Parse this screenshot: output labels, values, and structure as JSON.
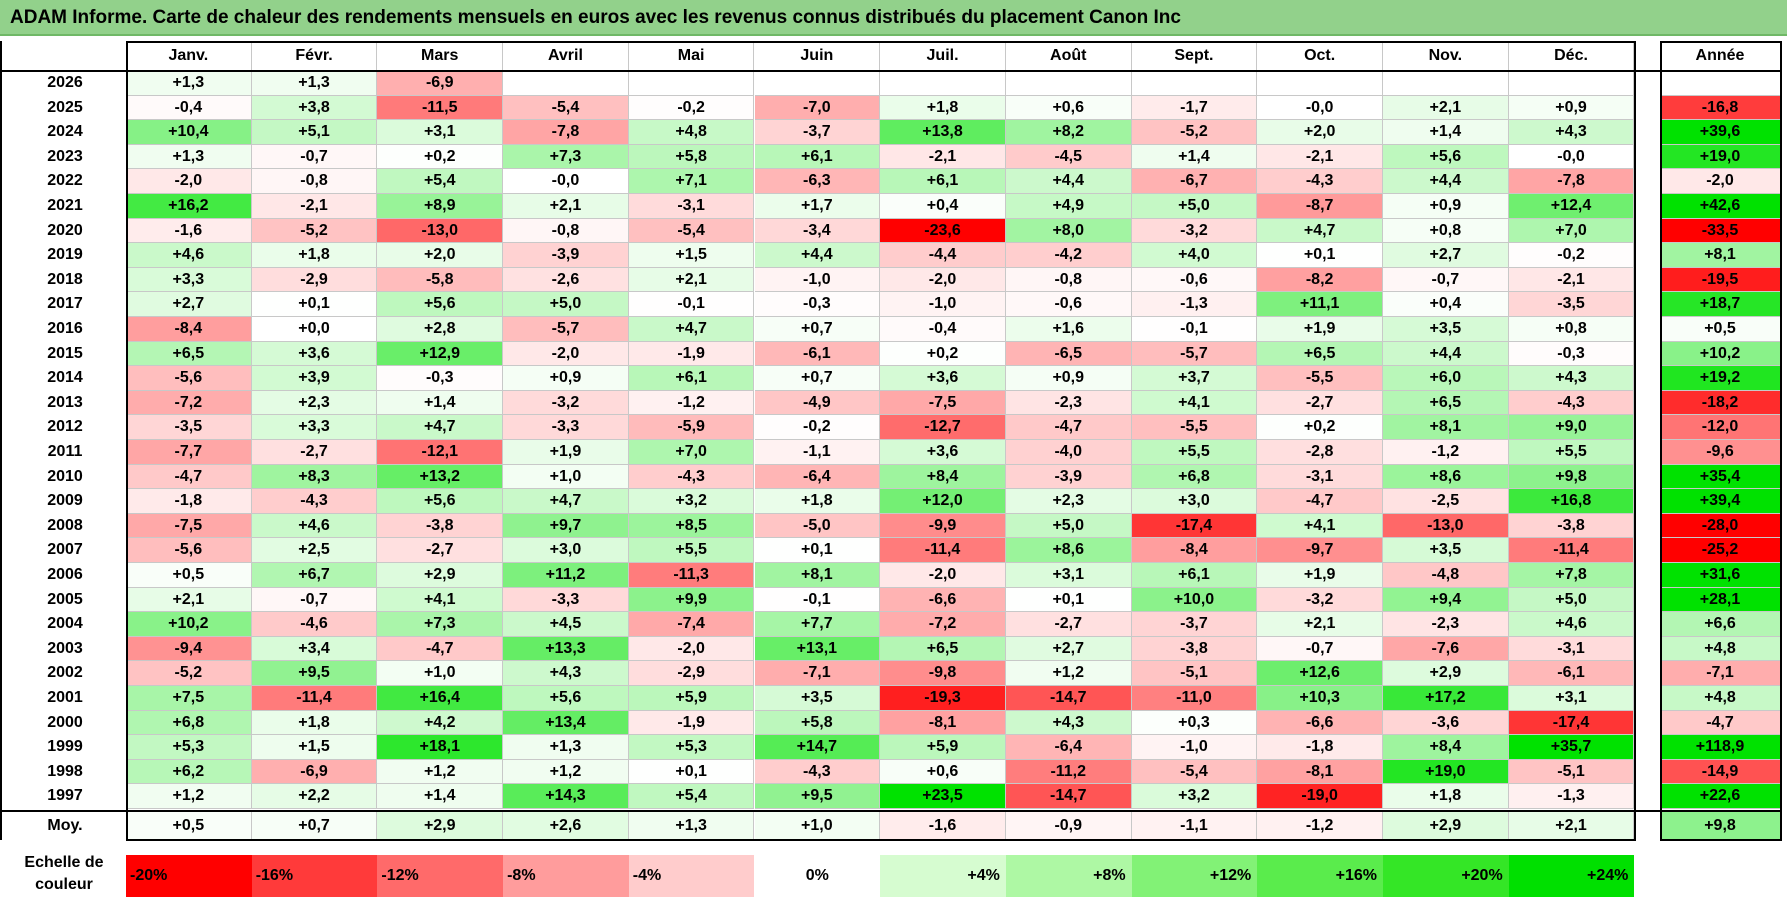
{
  "title": "ADAM Informe. Carte de chaleur des rendements mensuels en euros avec les revenus connus distribués du placement Canon Inc",
  "chart_data": {
    "type": "heatmap",
    "title": "ADAM Informe. Carte de chaleur des rendements mensuels en euros avec les revenus connus distribués du placement Canon Inc",
    "columns": [
      "Janv.",
      "Févr.",
      "Mars",
      "Avril",
      "Mai",
      "Juin",
      "Juil.",
      "Août",
      "Sept.",
      "Oct.",
      "Nov.",
      "Déc."
    ],
    "annual_header": "Année",
    "rows": [
      {
        "year": "2026",
        "months": [
          "+1,3",
          "+1,3",
          "-6,9",
          "",
          "",
          "",
          "",
          "",
          "",
          "",
          "",
          ""
        ],
        "annual": ""
      },
      {
        "year": "2025",
        "months": [
          "-0,4",
          "+3,8",
          "-11,5",
          "-5,4",
          "-0,2",
          "-7,0",
          "+1,8",
          "+0,6",
          "-1,7",
          "-0,0",
          "+2,1",
          "+0,9"
        ],
        "annual": "-16,8"
      },
      {
        "year": "2024",
        "months": [
          "+10,4",
          "+5,1",
          "+3,1",
          "-7,8",
          "+4,8",
          "-3,7",
          "+13,8",
          "+8,2",
          "-5,2",
          "+2,0",
          "+1,4",
          "+4,3"
        ],
        "annual": "+39,6"
      },
      {
        "year": "2023",
        "months": [
          "+1,3",
          "-0,7",
          "+0,2",
          "+7,3",
          "+5,8",
          "+6,1",
          "-2,1",
          "-4,5",
          "+1,4",
          "-2,1",
          "+5,6",
          "-0,0"
        ],
        "annual": "+19,0"
      },
      {
        "year": "2022",
        "months": [
          "-2,0",
          "-0,8",
          "+5,4",
          "-0,0",
          "+7,1",
          "-6,3",
          "+6,1",
          "+4,4",
          "-6,7",
          "-4,3",
          "+4,4",
          "-7,8"
        ],
        "annual": "-2,0"
      },
      {
        "year": "2021",
        "months": [
          "+16,2",
          "-2,1",
          "+8,9",
          "+2,1",
          "-3,1",
          "+1,7",
          "+0,4",
          "+4,9",
          "+5,0",
          "-8,7",
          "+0,9",
          "+12,4"
        ],
        "annual": "+42,6"
      },
      {
        "year": "2020",
        "months": [
          "-1,6",
          "-5,2",
          "-13,0",
          "-0,8",
          "-5,4",
          "-3,4",
          "-23,6",
          "+8,0",
          "-3,2",
          "+4,7",
          "+0,8",
          "+7,0"
        ],
        "annual": "-33,5"
      },
      {
        "year": "2019",
        "months": [
          "+4,6",
          "+1,8",
          "+2,0",
          "-3,9",
          "+1,5",
          "+4,4",
          "-4,4",
          "-4,2",
          "+4,0",
          "+0,1",
          "+2,7",
          "-0,2"
        ],
        "annual": "+8,1"
      },
      {
        "year": "2018",
        "months": [
          "+3,3",
          "-2,9",
          "-5,8",
          "-2,6",
          "+2,1",
          "-1,0",
          "-2,0",
          "-0,8",
          "-0,6",
          "-8,2",
          "-0,7",
          "-2,1"
        ],
        "annual": "-19,5"
      },
      {
        "year": "2017",
        "months": [
          "+2,7",
          "+0,1",
          "+5,6",
          "+5,0",
          "-0,1",
          "-0,3",
          "-1,0",
          "-0,6",
          "-1,3",
          "+11,1",
          "+0,4",
          "-3,5"
        ],
        "annual": "+18,7"
      },
      {
        "year": "2016",
        "months": [
          "-8,4",
          "+0,0",
          "+2,8",
          "-5,7",
          "+4,7",
          "+0,7",
          "-0,4",
          "+1,6",
          "-0,1",
          "+1,9",
          "+3,5",
          "+0,8"
        ],
        "annual": "+0,5"
      },
      {
        "year": "2015",
        "months": [
          "+6,5",
          "+3,6",
          "+12,9",
          "-2,0",
          "-1,9",
          "-6,1",
          "+0,2",
          "-6,5",
          "-5,7",
          "+6,5",
          "+4,4",
          "-0,3"
        ],
        "annual": "+10,2"
      },
      {
        "year": "2014",
        "months": [
          "-5,6",
          "+3,9",
          "-0,3",
          "+0,9",
          "+6,1",
          "+0,7",
          "+3,6",
          "+0,9",
          "+3,7",
          "-5,5",
          "+6,0",
          "+4,3"
        ],
        "annual": "+19,2"
      },
      {
        "year": "2013",
        "months": [
          "-7,2",
          "+2,3",
          "+1,4",
          "-3,2",
          "-1,2",
          "-4,9",
          "-7,5",
          "-2,3",
          "+4,1",
          "-2,7",
          "+6,5",
          "-4,3"
        ],
        "annual": "-18,2"
      },
      {
        "year": "2012",
        "months": [
          "-3,5",
          "+3,3",
          "+4,7",
          "-3,3",
          "-5,9",
          "-0,2",
          "-12,7",
          "-4,7",
          "-5,5",
          "+0,2",
          "+8,1",
          "+9,0"
        ],
        "annual": "-12,0"
      },
      {
        "year": "2011",
        "months": [
          "-7,7",
          "-2,7",
          "-12,1",
          "+1,9",
          "+7,0",
          "-1,1",
          "+3,6",
          "-4,0",
          "+5,5",
          "-2,8",
          "-1,2",
          "+5,5"
        ],
        "annual": "-9,6"
      },
      {
        "year": "2010",
        "months": [
          "-4,7",
          "+8,3",
          "+13,2",
          "+1,0",
          "-4,3",
          "-6,4",
          "+8,4",
          "-3,9",
          "+6,8",
          "-3,1",
          "+8,6",
          "+9,8"
        ],
        "annual": "+35,4"
      },
      {
        "year": "2009",
        "months": [
          "-1,8",
          "-4,3",
          "+5,6",
          "+4,7",
          "+3,2",
          "+1,8",
          "+12,0",
          "+2,3",
          "+3,0",
          "-4,7",
          "-2,5",
          "+16,8"
        ],
        "annual": "+39,4"
      },
      {
        "year": "2008",
        "months": [
          "-7,5",
          "+4,6",
          "-3,8",
          "+9,7",
          "+8,5",
          "-5,0",
          "-9,9",
          "+5,0",
          "-17,4",
          "+4,1",
          "-13,0",
          "-3,8"
        ],
        "annual": "-28,0"
      },
      {
        "year": "2007",
        "months": [
          "-5,6",
          "+2,5",
          "-2,7",
          "+3,0",
          "+5,5",
          "+0,1",
          "-11,4",
          "+8,6",
          "-8,4",
          "-9,7",
          "+3,5",
          "-11,4"
        ],
        "annual": "-25,2"
      },
      {
        "year": "2006",
        "months": [
          "+0,5",
          "+6,7",
          "+2,9",
          "+11,2",
          "-11,3",
          "+8,1",
          "-2,0",
          "+3,1",
          "+6,1",
          "+1,9",
          "-4,8",
          "+7,8"
        ],
        "annual": "+31,6"
      },
      {
        "year": "2005",
        "months": [
          "+2,1",
          "-0,7",
          "+4,1",
          "-3,3",
          "+9,9",
          "-0,1",
          "-6,6",
          "+0,1",
          "+10,0",
          "-3,2",
          "+9,4",
          "+5,0"
        ],
        "annual": "+28,1"
      },
      {
        "year": "2004",
        "months": [
          "+10,2",
          "-4,6",
          "+7,3",
          "+4,5",
          "-7,4",
          "+7,7",
          "-7,2",
          "-2,7",
          "-3,7",
          "+2,1",
          "-2,3",
          "+4,6"
        ],
        "annual": "+6,6"
      },
      {
        "year": "2003",
        "months": [
          "-9,4",
          "+3,4",
          "-4,7",
          "+13,3",
          "-2,0",
          "+13,1",
          "+6,5",
          "+2,7",
          "-3,8",
          "-0,7",
          "-7,6",
          "-3,1"
        ],
        "annual": "+4,8"
      },
      {
        "year": "2002",
        "months": [
          "-5,2",
          "+9,5",
          "+1,0",
          "+4,3",
          "-2,9",
          "-7,1",
          "-9,8",
          "+1,2",
          "-5,1",
          "+12,6",
          "+2,9",
          "-6,1"
        ],
        "annual": "-7,1"
      },
      {
        "year": "2001",
        "months": [
          "+7,5",
          "-11,4",
          "+16,4",
          "+5,6",
          "+5,9",
          "+3,5",
          "-19,3",
          "-14,7",
          "-11,0",
          "+10,3",
          "+17,2",
          "+3,1"
        ],
        "annual": "+4,8"
      },
      {
        "year": "2000",
        "months": [
          "+6,8",
          "+1,8",
          "+4,2",
          "+13,4",
          "-1,9",
          "+5,8",
          "-8,1",
          "+4,3",
          "+0,3",
          "-6,6",
          "-3,6",
          "-17,4"
        ],
        "annual": "-4,7"
      },
      {
        "year": "1999",
        "months": [
          "+5,3",
          "+1,5",
          "+18,1",
          "+1,3",
          "+5,3",
          "+14,7",
          "+5,9",
          "-6,4",
          "-1,0",
          "-1,8",
          "+8,4",
          "+35,7"
        ],
        "annual": "+118,9"
      },
      {
        "year": "1998",
        "months": [
          "+6,2",
          "-6,9",
          "+1,2",
          "+1,2",
          "+0,1",
          "-4,3",
          "+0,6",
          "-11,2",
          "-5,4",
          "-8,1",
          "+19,0",
          "-5,1"
        ],
        "annual": "-14,9"
      },
      {
        "year": "1997",
        "months": [
          "+1,2",
          "+2,2",
          "+1,4",
          "+14,3",
          "+5,4",
          "+9,5",
          "+23,5",
          "-14,7",
          "+3,2",
          "-19,0",
          "+1,8",
          "-1,3"
        ],
        "annual": "+22,6"
      }
    ],
    "average": {
      "label": "Moy.",
      "months": [
        "+0,5",
        "+0,7",
        "+2,9",
        "+2,6",
        "+1,3",
        "+1,0",
        "-1,6",
        "-0,9",
        "-1,1",
        "-1,2",
        "+2,9",
        "+2,1"
      ],
      "annual": "+9,8"
    },
    "scale": {
      "label": "Echelle de couleur",
      "steps": [
        {
          "text": "-20%",
          "value": -20,
          "color": "#ff0000"
        },
        {
          "text": "-16%",
          "value": -16,
          "color": "#ff3a3a"
        },
        {
          "text": "-12%",
          "value": -12,
          "color": "#ff6a6a"
        },
        {
          "text": "-8%",
          "value": -8,
          "color": "#ff9c9c"
        },
        {
          "text": "-4%",
          "value": -4,
          "color": "#ffcccc"
        },
        {
          "text": "0%",
          "value": 0,
          "color": "#ffffff"
        },
        {
          "text": "+4%",
          "value": 4,
          "color": "#d6fcd0"
        },
        {
          "text": "+8%",
          "value": 8,
          "color": "#aef8a4"
        },
        {
          "text": "+12%",
          "value": 12,
          "color": "#82f276"
        },
        {
          "text": "+16%",
          "value": 16,
          "color": "#5aec4c"
        },
        {
          "text": "+20%",
          "value": 20,
          "color": "#34e626"
        },
        {
          "text": "+24%",
          "value": 24,
          "color": "#00e000"
        }
      ]
    }
  }
}
